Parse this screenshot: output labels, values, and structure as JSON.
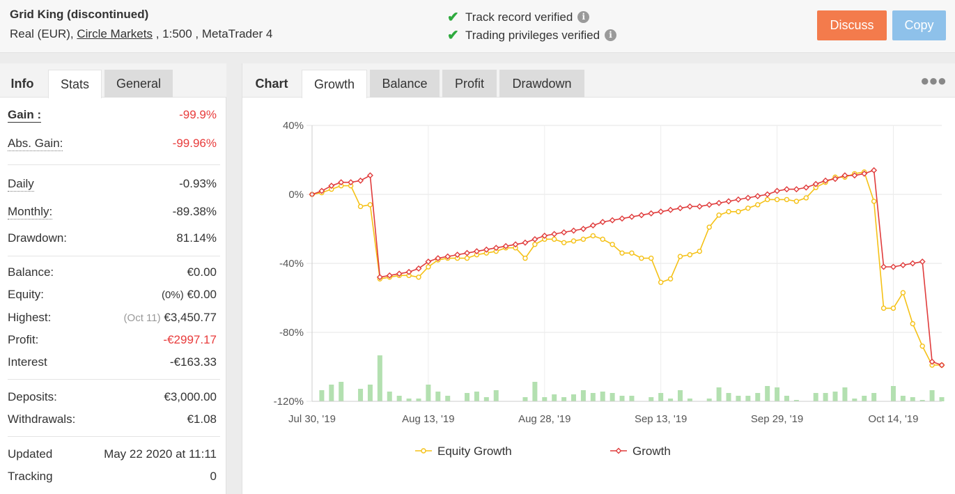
{
  "header": {
    "system_name": "Grid King (discontinued)",
    "account_prefix": "Real (EUR),",
    "broker": "Circle Markets",
    "account_suffix": ", 1:500 , MetaTrader 4",
    "verify_track": "Track record verified",
    "verify_trading": "Trading privileges verified",
    "discuss_label": "Discuss",
    "copy_label": "Copy",
    "colors": {
      "discuss": "#f37b4c",
      "copy": "#8ec1ea",
      "check": "#2eaa3e"
    }
  },
  "left_tabs": {
    "title": "Info",
    "stats": "Stats",
    "general": "General"
  },
  "stats": {
    "gain_label": "Gain :",
    "gain_value": "-99.9%",
    "abs_gain_label": "Abs. Gain:",
    "abs_gain_value": "-99.96%",
    "daily_label": "Daily",
    "daily_value": "-0.93%",
    "monthly_label": "Monthly:",
    "monthly_value": "-89.38%",
    "drawdown_label": "Drawdown:",
    "drawdown_value": "81.14%",
    "balance_label": "Balance:",
    "balance_value": "€0.00",
    "equity_label": "Equity:",
    "equity_pct": "(0%)",
    "equity_value": "€0.00",
    "highest_label": "Highest:",
    "highest_date": "(Oct 11)",
    "highest_value": "€3,450.77",
    "profit_label": "Profit:",
    "profit_value": "-€2997.17",
    "interest_label": "Interest",
    "interest_value": "-€163.33",
    "deposits_label": "Deposits:",
    "deposits_value": "€3,000.00",
    "withdrawals_label": "Withdrawals:",
    "withdrawals_value": "€1.08",
    "updated_label": "Updated",
    "updated_value": "May 22 2020 at 11:11",
    "tracking_label": "Tracking",
    "tracking_value": "0"
  },
  "chart_tabs": {
    "title": "Chart",
    "growth": "Growth",
    "balance": "Balance",
    "profit": "Profit",
    "drawdown": "Drawdown",
    "menu_icon": "more-dots-icon"
  },
  "chart_data": {
    "type": "line",
    "title": "",
    "xlabel": "",
    "ylabel": "",
    "ylim": [
      -120,
      40
    ],
    "y_ticks": [
      "40%",
      "0%",
      "-40%",
      "-80%",
      "-120%"
    ],
    "y_tick_values": [
      40,
      0,
      -40,
      -80,
      -120
    ],
    "x_tick_labels": [
      "Jul 30, '19",
      "Aug 13, '19",
      "Aug 28, '19",
      "Sep 13, '19",
      "Sep 29, '19",
      "Oct 14, '19"
    ],
    "x_tick_index": [
      0,
      12,
      24,
      36,
      48,
      60
    ],
    "legend_position": "bottom",
    "colors": {
      "equity": "#f5c116",
      "growth": "#e03c3c",
      "volume": "#b3e0b0"
    },
    "series": [
      {
        "name": "Equity Growth",
        "values": [
          0,
          1,
          3,
          5,
          5,
          -7,
          -6,
          -49,
          -48,
          -47,
          -47,
          -48,
          -42,
          -38,
          -37,
          -37,
          -37,
          -35,
          -34,
          -33,
          -31,
          -31,
          -37,
          -29,
          -26,
          -26,
          -28,
          -27,
          -26,
          -24,
          -26,
          -29,
          -34,
          -34,
          -37,
          -37,
          -51,
          -49,
          -36,
          -35,
          -33,
          -19,
          -12,
          -10,
          -10,
          -8,
          -6,
          -3,
          -3,
          -3,
          -4,
          -2,
          4,
          7,
          10,
          10,
          12,
          13,
          -4,
          -66,
          -66,
          -57,
          -75,
          -88,
          -99,
          -99
        ]
      },
      {
        "name": "Growth",
        "values": [
          0,
          2,
          5,
          7,
          7,
          8,
          11,
          -48,
          -47,
          -46,
          -45,
          -43,
          -39,
          -37,
          -36,
          -35,
          -34,
          -33,
          -32,
          -31,
          -30,
          -29,
          -28,
          -26,
          -24,
          -23,
          -22,
          -21,
          -20,
          -18,
          -16,
          -15,
          -14,
          -13,
          -12,
          -11,
          -10,
          -9,
          -8,
          -7,
          -7,
          -6,
          -5,
          -4,
          -3,
          -2,
          -1,
          0,
          2,
          3,
          3,
          4,
          6,
          8,
          9,
          11,
          11,
          12,
          14,
          -42,
          -42,
          -41,
          -40,
          -39,
          -97,
          -99
        ]
      },
      {
        "name": "",
        "values": [
          0,
          8,
          12,
          14,
          0,
          9,
          12,
          33,
          7,
          4,
          2,
          2,
          12,
          7,
          4,
          0,
          6,
          7,
          3,
          8,
          0,
          0,
          3,
          14,
          3,
          5,
          3,
          5,
          8,
          6,
          7,
          6,
          4,
          4,
          0,
          3,
          6,
          2,
          8,
          2,
          0,
          2,
          10,
          6,
          4,
          4,
          6,
          11,
          10,
          4,
          1,
          0,
          6,
          6,
          7,
          10,
          2,
          4,
          6,
          0,
          11,
          4,
          3,
          1,
          8,
          3
        ]
      }
    ]
  }
}
